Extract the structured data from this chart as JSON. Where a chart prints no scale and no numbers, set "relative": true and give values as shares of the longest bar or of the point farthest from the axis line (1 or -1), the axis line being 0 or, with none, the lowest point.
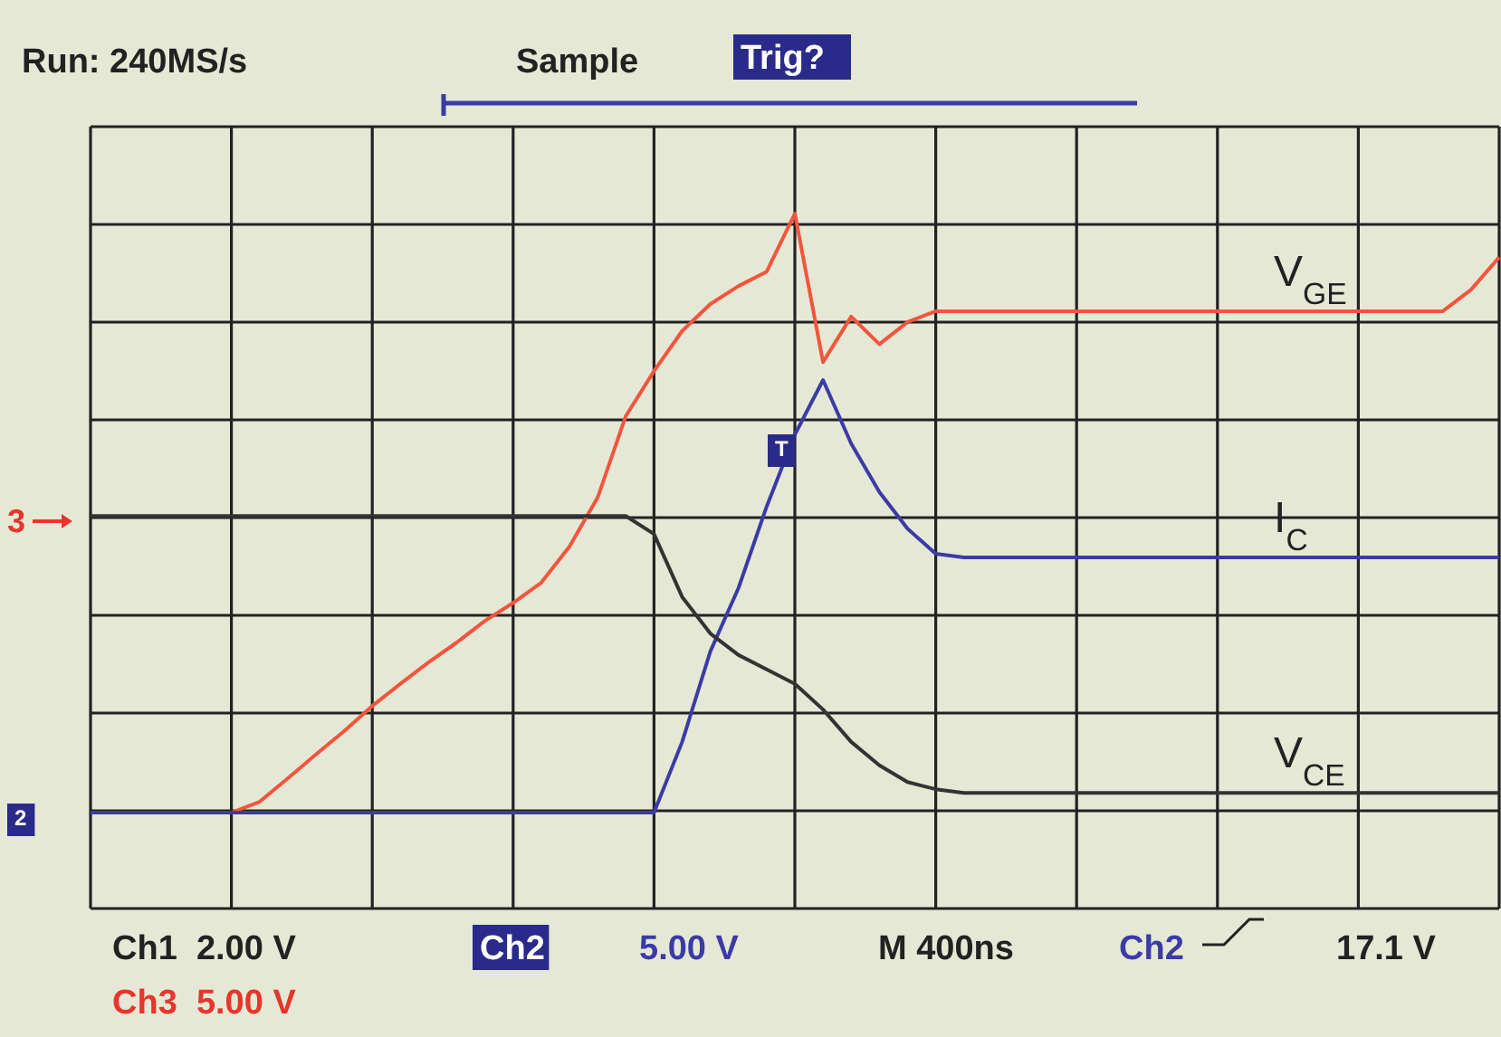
{
  "chart_data": {
    "type": "line",
    "relative": true,
    "grid": true,
    "line_style": "solid",
    "categories": [
      null,
      null,
      null,
      null,
      null,
      null,
      null,
      null,
      null,
      null,
      null,
      null,
      null,
      null,
      null,
      null,
      null,
      null,
      null,
      null,
      null,
      null,
      null,
      null,
      null,
      null,
      null,
      null,
      null,
      null,
      null,
      null,
      null,
      null,
      null,
      null,
      null,
      null,
      null,
      null,
      null,
      null,
      null,
      null,
      null,
      null,
      null,
      null,
      null,
      null,
      null
    ],
    "series": [
      {
        "name": "V$_{GE}$",
        "color": "#f2553c",
        "values": [
          null,
          null,
          null,
          null,
          null,
          0,
          0.018,
          0.057,
          0.097,
          0.136,
          0.178,
          0.215,
          0.251,
          0.284,
          0.32,
          0.35,
          0.384,
          0.444,
          0.526,
          0.662,
          0.737,
          0.804,
          0.849,
          0.879,
          0.903,
          1,
          0.752,
          0.828,
          0.782,
          0.819,
          0.837,
          0.837,
          0.837,
          0.837,
          0.837,
          0.837,
          0.837,
          0.837,
          0.837,
          0.837,
          0.837,
          0.837,
          0.837,
          0.837,
          0.837,
          0.837,
          0.837,
          0.837,
          0.837,
          0.873,
          0.927
        ]
      },
      {
        "name": "I$_{C}$",
        "color": "#3b3ba6",
        "values": [
          0,
          0,
          0,
          0,
          0,
          0,
          0,
          0,
          0,
          0,
          0,
          0,
          0,
          0,
          0,
          0,
          0,
          0,
          0,
          0,
          0,
          0.118,
          0.269,
          0.375,
          0.511,
          0.631,
          0.722,
          0.616,
          0.535,
          0.474,
          0.432,
          0.426,
          0.426,
          0.426,
          0.426,
          0.426,
          0.426,
          0.426,
          0.426,
          0.426,
          0.426,
          0.426,
          0.426,
          0.426,
          0.426,
          0.426,
          0.426,
          0.426,
          0.426,
          0.426,
          0.426
        ]
      },
      {
        "name": "V$_{CE}$",
        "color": "#333333",
        "values": [
          0.495,
          0.495,
          0.495,
          0.495,
          0.495,
          0.495,
          0.495,
          0.495,
          0.495,
          0.495,
          0.495,
          0.495,
          0.495,
          0.495,
          0.495,
          0.495,
          0.495,
          0.495,
          0.495,
          0.495,
          0.465,
          0.36,
          0.299,
          0.263,
          0.239,
          0.215,
          0.172,
          0.118,
          0.079,
          0.051,
          0.039,
          0.033,
          0.033,
          0.033,
          0.033,
          0.033,
          0.033,
          0.033,
          0.033,
          0.033,
          0.033,
          0.033,
          0.033,
          0.033,
          0.033,
          0.033,
          0.033,
          0.033,
          0.033,
          0.033,
          0.033
        ]
      }
    ],
    "annotations": [
      "Run: 240MS/s",
      "Sample",
      "Trig?",
      "Ch1  2.00 V",
      "Ch2",
      "5.00 V",
      "M 400ns",
      "Ch2",
      "17.1 V",
      "Ch3  5.00 V",
      "3",
      "2",
      "T"
    ]
  }
}
